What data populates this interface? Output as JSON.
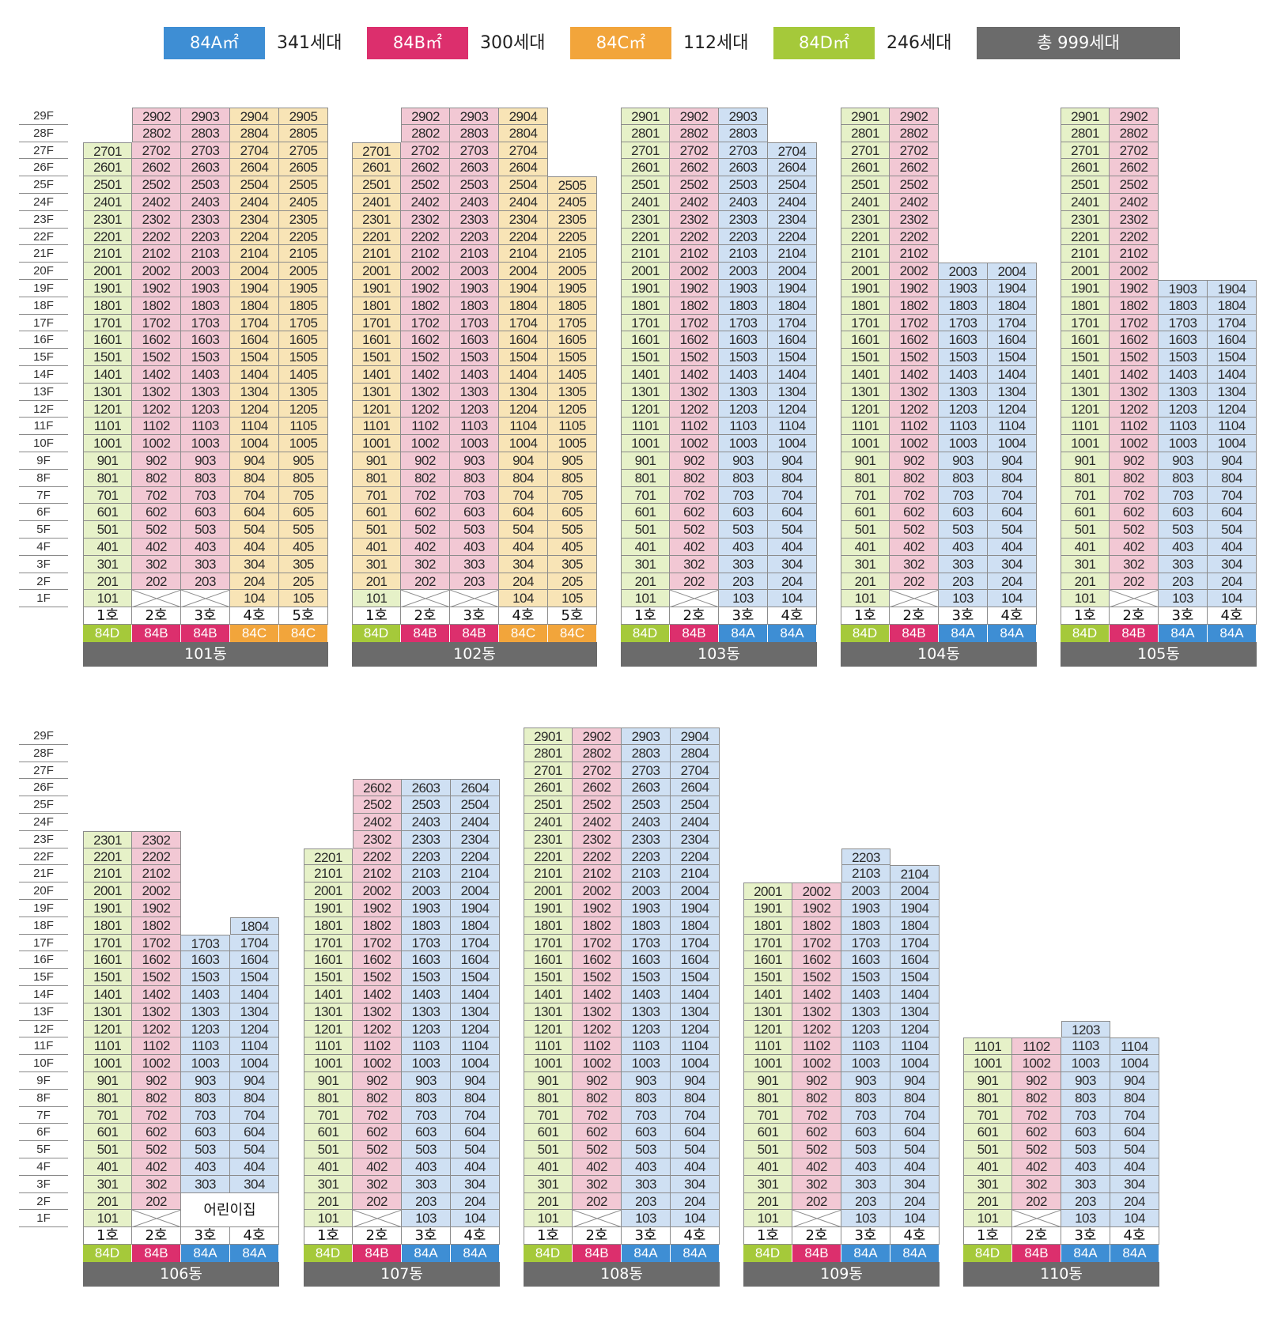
{
  "colors": {
    "84A_fill": "#cfe0f3",
    "84A_label": "#3e8ed4",
    "84B_fill": "#f2c8d4",
    "84B_label": "#dc2f6d",
    "84C_fill": "#f8e4b6",
    "84C_label": "#f2a53b",
    "84D_fill": "#e6f1c8",
    "84D_label": "#a5c93a",
    "total": "#6b6b6b"
  },
  "legend": {
    "items": [
      {
        "label": "84A㎡",
        "count": "341세대",
        "type": "84A"
      },
      {
        "label": "84B㎡",
        "count": "300세대",
        "type": "84B"
      },
      {
        "label": "84C㎡",
        "count": "112세대",
        "type": "84C"
      },
      {
        "label": "84D㎡",
        "count": "246세대",
        "type": "84D"
      }
    ],
    "total": "총 999세대"
  },
  "floor_labels": [
    "29F",
    "28F",
    "27F",
    "26F",
    "25F",
    "24F",
    "23F",
    "22F",
    "21F",
    "20F",
    "19F",
    "18F",
    "17F",
    "16F",
    "15F",
    "14F",
    "13F",
    "12F",
    "11F",
    "10F",
    "9F",
    "8F",
    "7F",
    "6F",
    "5F",
    "4F",
    "3F",
    "2F",
    "1F"
  ],
  "kindergarten_label": "어린이집",
  "buildings": [
    {
      "name": "101동",
      "columns": [
        {
          "ho": "1호",
          "type": "84D",
          "top": 27,
          "cell_type": "84D",
          "empty_floors": []
        },
        {
          "ho": "2호",
          "type": "84B",
          "top": 29,
          "cell_type": "84B",
          "empty_floors": [
            1
          ]
        },
        {
          "ho": "3호",
          "type": "84B",
          "top": 29,
          "cell_type": "84B",
          "empty_floors": [
            1
          ]
        },
        {
          "ho": "4호",
          "type": "84C",
          "top": 29,
          "cell_type": "84C",
          "empty_floors": []
        },
        {
          "ho": "5호",
          "type": "84C",
          "top": 29,
          "cell_type": "84C",
          "empty_floors": []
        }
      ]
    },
    {
      "name": "102동",
      "columns": [
        {
          "ho": "1호",
          "type": "84D",
          "top": 27,
          "cell_type": "84C",
          "first_type": "84D",
          "empty_floors": []
        },
        {
          "ho": "2호",
          "type": "84B",
          "top": 29,
          "cell_type": "84B",
          "empty_floors": [
            1
          ]
        },
        {
          "ho": "3호",
          "type": "84B",
          "top": 29,
          "cell_type": "84B",
          "empty_floors": [
            1
          ]
        },
        {
          "ho": "4호",
          "type": "84C",
          "top": 29,
          "cell_type": "84C",
          "empty_floors": []
        },
        {
          "ho": "5호",
          "type": "84C",
          "top": 25,
          "cell_type": "84C",
          "empty_floors": []
        }
      ]
    },
    {
      "name": "103동",
      "columns": [
        {
          "ho": "1호",
          "type": "84D",
          "top": 29,
          "cell_type": "84D",
          "empty_floors": []
        },
        {
          "ho": "2호",
          "type": "84B",
          "top": 29,
          "cell_type": "84B",
          "empty_floors": [
            1
          ]
        },
        {
          "ho": "3호",
          "type": "84A",
          "top": 29,
          "cell_type": "84A",
          "empty_floors": []
        },
        {
          "ho": "4호",
          "type": "84A",
          "top": 27,
          "cell_type": "84A",
          "empty_floors": []
        }
      ]
    },
    {
      "name": "104동",
      "columns": [
        {
          "ho": "1호",
          "type": "84D",
          "top": 29,
          "cell_type": "84D",
          "empty_floors": []
        },
        {
          "ho": "2호",
          "type": "84B",
          "top": 29,
          "cell_type": "84B",
          "empty_floors": [
            1
          ]
        },
        {
          "ho": "3호",
          "type": "84A",
          "top": 20,
          "cell_type": "84A",
          "empty_floors": []
        },
        {
          "ho": "4호",
          "type": "84A",
          "top": 20,
          "cell_type": "84A",
          "empty_floors": []
        }
      ]
    },
    {
      "name": "105동",
      "columns": [
        {
          "ho": "1호",
          "type": "84D",
          "top": 29,
          "cell_type": "84D",
          "empty_floors": []
        },
        {
          "ho": "2호",
          "type": "84B",
          "top": 29,
          "cell_type": "84B",
          "empty_floors": [
            1
          ]
        },
        {
          "ho": "3호",
          "type": "84A",
          "top": 19,
          "cell_type": "84A",
          "empty_floors": []
        },
        {
          "ho": "4호",
          "type": "84A",
          "top": 19,
          "cell_type": "84A",
          "empty_floors": []
        }
      ]
    },
    {
      "name": "106동",
      "kindergarten": true,
      "columns": [
        {
          "ho": "1호",
          "type": "84D",
          "top": 23,
          "cell_type": "84D",
          "empty_floors": []
        },
        {
          "ho": "2호",
          "type": "84B",
          "top": 23,
          "cell_type": "84B",
          "empty_floors": [
            1
          ]
        },
        {
          "ho": "3호",
          "type": "84A",
          "top": 17,
          "bottom": 3,
          "cell_type": "84A",
          "empty_floors": []
        },
        {
          "ho": "4호",
          "type": "84A",
          "top": 18,
          "bottom": 3,
          "cell_type": "84A",
          "empty_floors": []
        }
      ]
    },
    {
      "name": "107동",
      "columns": [
        {
          "ho": "1호",
          "type": "84D",
          "top": 22,
          "cell_type": "84D",
          "empty_floors": []
        },
        {
          "ho": "2호",
          "type": "84B",
          "top": 26,
          "cell_type": "84B",
          "empty_floors": [
            1
          ]
        },
        {
          "ho": "3호",
          "type": "84A",
          "top": 26,
          "cell_type": "84A",
          "empty_floors": []
        },
        {
          "ho": "4호",
          "type": "84A",
          "top": 26,
          "cell_type": "84A",
          "empty_floors": []
        }
      ]
    },
    {
      "name": "108동",
      "columns": [
        {
          "ho": "1호",
          "type": "84D",
          "top": 29,
          "cell_type": "84D",
          "empty_floors": []
        },
        {
          "ho": "2호",
          "type": "84B",
          "top": 29,
          "cell_type": "84B",
          "empty_floors": [
            1
          ]
        },
        {
          "ho": "3호",
          "type": "84A",
          "top": 29,
          "cell_type": "84A",
          "empty_floors": []
        },
        {
          "ho": "4호",
          "type": "84A",
          "top": 29,
          "cell_type": "84A",
          "empty_floors": []
        }
      ]
    },
    {
      "name": "109동",
      "columns": [
        {
          "ho": "1호",
          "type": "84D",
          "top": 20,
          "cell_type": "84D",
          "empty_floors": []
        },
        {
          "ho": "2호",
          "type": "84B",
          "top": 20,
          "cell_type": "84B",
          "empty_floors": [
            1
          ]
        },
        {
          "ho": "3호",
          "type": "84A",
          "top": 22,
          "cell_type": "84A",
          "empty_floors": []
        },
        {
          "ho": "4호",
          "type": "84A",
          "top": 21,
          "cell_type": "84A",
          "empty_floors": []
        }
      ]
    },
    {
      "name": "110동",
      "columns": [
        {
          "ho": "1호",
          "type": "84D",
          "top": 11,
          "cell_type": "84D",
          "empty_floors": []
        },
        {
          "ho": "2호",
          "type": "84B",
          "top": 11,
          "cell_type": "84B",
          "empty_floors": [
            1
          ]
        },
        {
          "ho": "3호",
          "type": "84A",
          "top": 12,
          "cell_type": "84A",
          "empty_floors": []
        },
        {
          "ho": "4호",
          "type": "84A",
          "top": 11,
          "cell_type": "84A",
          "empty_floors": []
        }
      ]
    }
  ]
}
